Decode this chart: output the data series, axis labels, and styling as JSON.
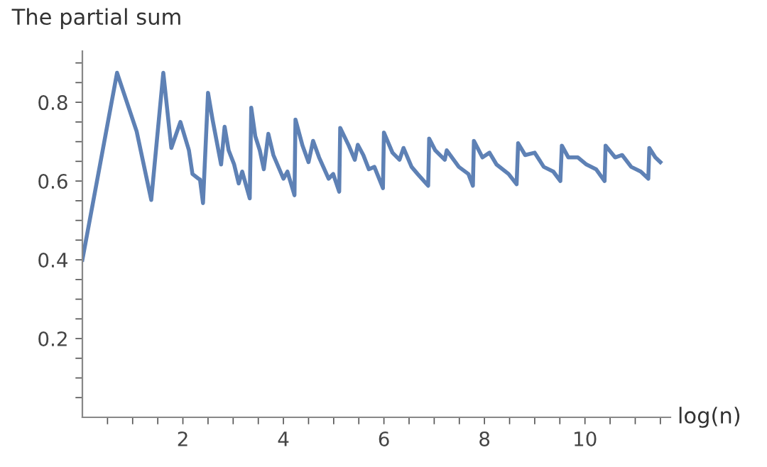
{
  "chart_data": {
    "type": "line",
    "xlabel": "log(n)",
    "ylabel": "The partial sum",
    "x": [
      0,
      0.69,
      1.08,
      1.37,
      1.61,
      1.77,
      1.95,
      2.12,
      2.19,
      2.31,
      2.34,
      2.4,
      2.5,
      2.59,
      2.76,
      2.83,
      2.91,
      3.02,
      3.11,
      3.18,
      3.33,
      3.36,
      3.44,
      3.53,
      3.61,
      3.7,
      3.8,
      4.0,
      4.08,
      4.22,
      4.24,
      4.38,
      4.5,
      4.59,
      4.71,
      4.9,
      4.99,
      5.11,
      5.13,
      5.3,
      5.42,
      5.48,
      5.59,
      5.7,
      5.81,
      5.98,
      6.0,
      6.17,
      6.31,
      6.39,
      6.55,
      6.67,
      6.88,
      6.9,
      7.02,
      7.21,
      7.25,
      7.49,
      7.68,
      7.77,
      7.79,
      7.96,
      8.1,
      8.24,
      8.48,
      8.64,
      8.67,
      8.81,
      9.0,
      9.18,
      9.37,
      9.51,
      9.54,
      9.67,
      9.86,
      10.03,
      10.22,
      10.39,
      10.41,
      10.6,
      10.74,
      10.92,
      11.11,
      11.26,
      11.28,
      11.4,
      11.5
    ],
    "series": [
      {
        "color": "#5e81b5",
        "values": [
          0.4,
          0.875,
          0.726,
          0.552,
          0.875,
          0.684,
          0.75,
          0.678,
          0.618,
          0.606,
          0.604,
          0.544,
          0.824,
          0.756,
          0.642,
          0.738,
          0.678,
          0.642,
          0.594,
          0.624,
          0.556,
          0.786,
          0.714,
          0.678,
          0.63,
          0.72,
          0.666,
          0.606,
          0.624,
          0.564,
          0.756,
          0.69,
          0.648,
          0.702,
          0.66,
          0.606,
          0.618,
          0.573,
          0.735,
          0.69,
          0.654,
          0.692,
          0.666,
          0.63,
          0.636,
          0.582,
          0.723,
          0.672,
          0.654,
          0.684,
          0.636,
          0.618,
          0.588,
          0.708,
          0.678,
          0.654,
          0.678,
          0.636,
          0.618,
          0.588,
          0.702,
          0.66,
          0.672,
          0.642,
          0.618,
          0.592,
          0.696,
          0.666,
          0.672,
          0.636,
          0.624,
          0.6,
          0.69,
          0.66,
          0.66,
          0.642,
          0.63,
          0.6,
          0.69,
          0.66,
          0.666,
          0.636,
          0.624,
          0.606,
          0.684,
          0.66,
          0.648
        ]
      }
    ],
    "xlim": [
      0,
      11.7
    ],
    "ylim": [
      0,
      0.93
    ],
    "xticks": [
      {
        "value": 0.5,
        "label": null
      },
      {
        "value": 1,
        "label": null
      },
      {
        "value": 1.5,
        "label": null
      },
      2,
      {
        "value": 2.5,
        "label": null
      },
      {
        "value": 3,
        "label": null
      },
      {
        "value": 3.5,
        "label": null
      },
      4,
      {
        "value": 4.5,
        "label": null
      },
      {
        "value": 5,
        "label": null
      },
      {
        "value": 5.5,
        "label": null
      },
      6,
      {
        "value": 6.5,
        "label": null
      },
      {
        "value": 7,
        "label": null
      },
      {
        "value": 7.5,
        "label": null
      },
      8,
      {
        "value": 8.5,
        "label": null
      },
      {
        "value": 9,
        "label": null
      },
      {
        "value": 9.5,
        "label": null
      },
      10,
      {
        "value": 10.5,
        "label": null
      },
      {
        "value": 11,
        "label": null
      },
      {
        "value": 11.5,
        "label": null
      }
    ],
    "yticks": [
      {
        "value": 0.05,
        "label": null
      },
      {
        "value": 0.1,
        "label": null
      },
      {
        "value": 0.15,
        "label": null
      },
      0.2,
      {
        "value": 0.25,
        "label": null
      },
      {
        "value": 0.3,
        "label": null
      },
      {
        "value": 0.35,
        "label": null
      },
      0.4,
      {
        "value": 0.45,
        "label": null
      },
      {
        "value": 0.5,
        "label": null
      },
      {
        "value": 0.55,
        "label": null
      },
      0.6,
      {
        "value": 0.65,
        "label": null
      },
      {
        "value": 0.7,
        "label": null
      },
      {
        "value": 0.75,
        "label": null
      },
      0.8,
      {
        "value": 0.85,
        "label": null
      },
      {
        "value": 0.9,
        "label": null
      }
    ],
    "grid": false,
    "legend": false,
    "marker": "none",
    "line_style": "solid"
  }
}
